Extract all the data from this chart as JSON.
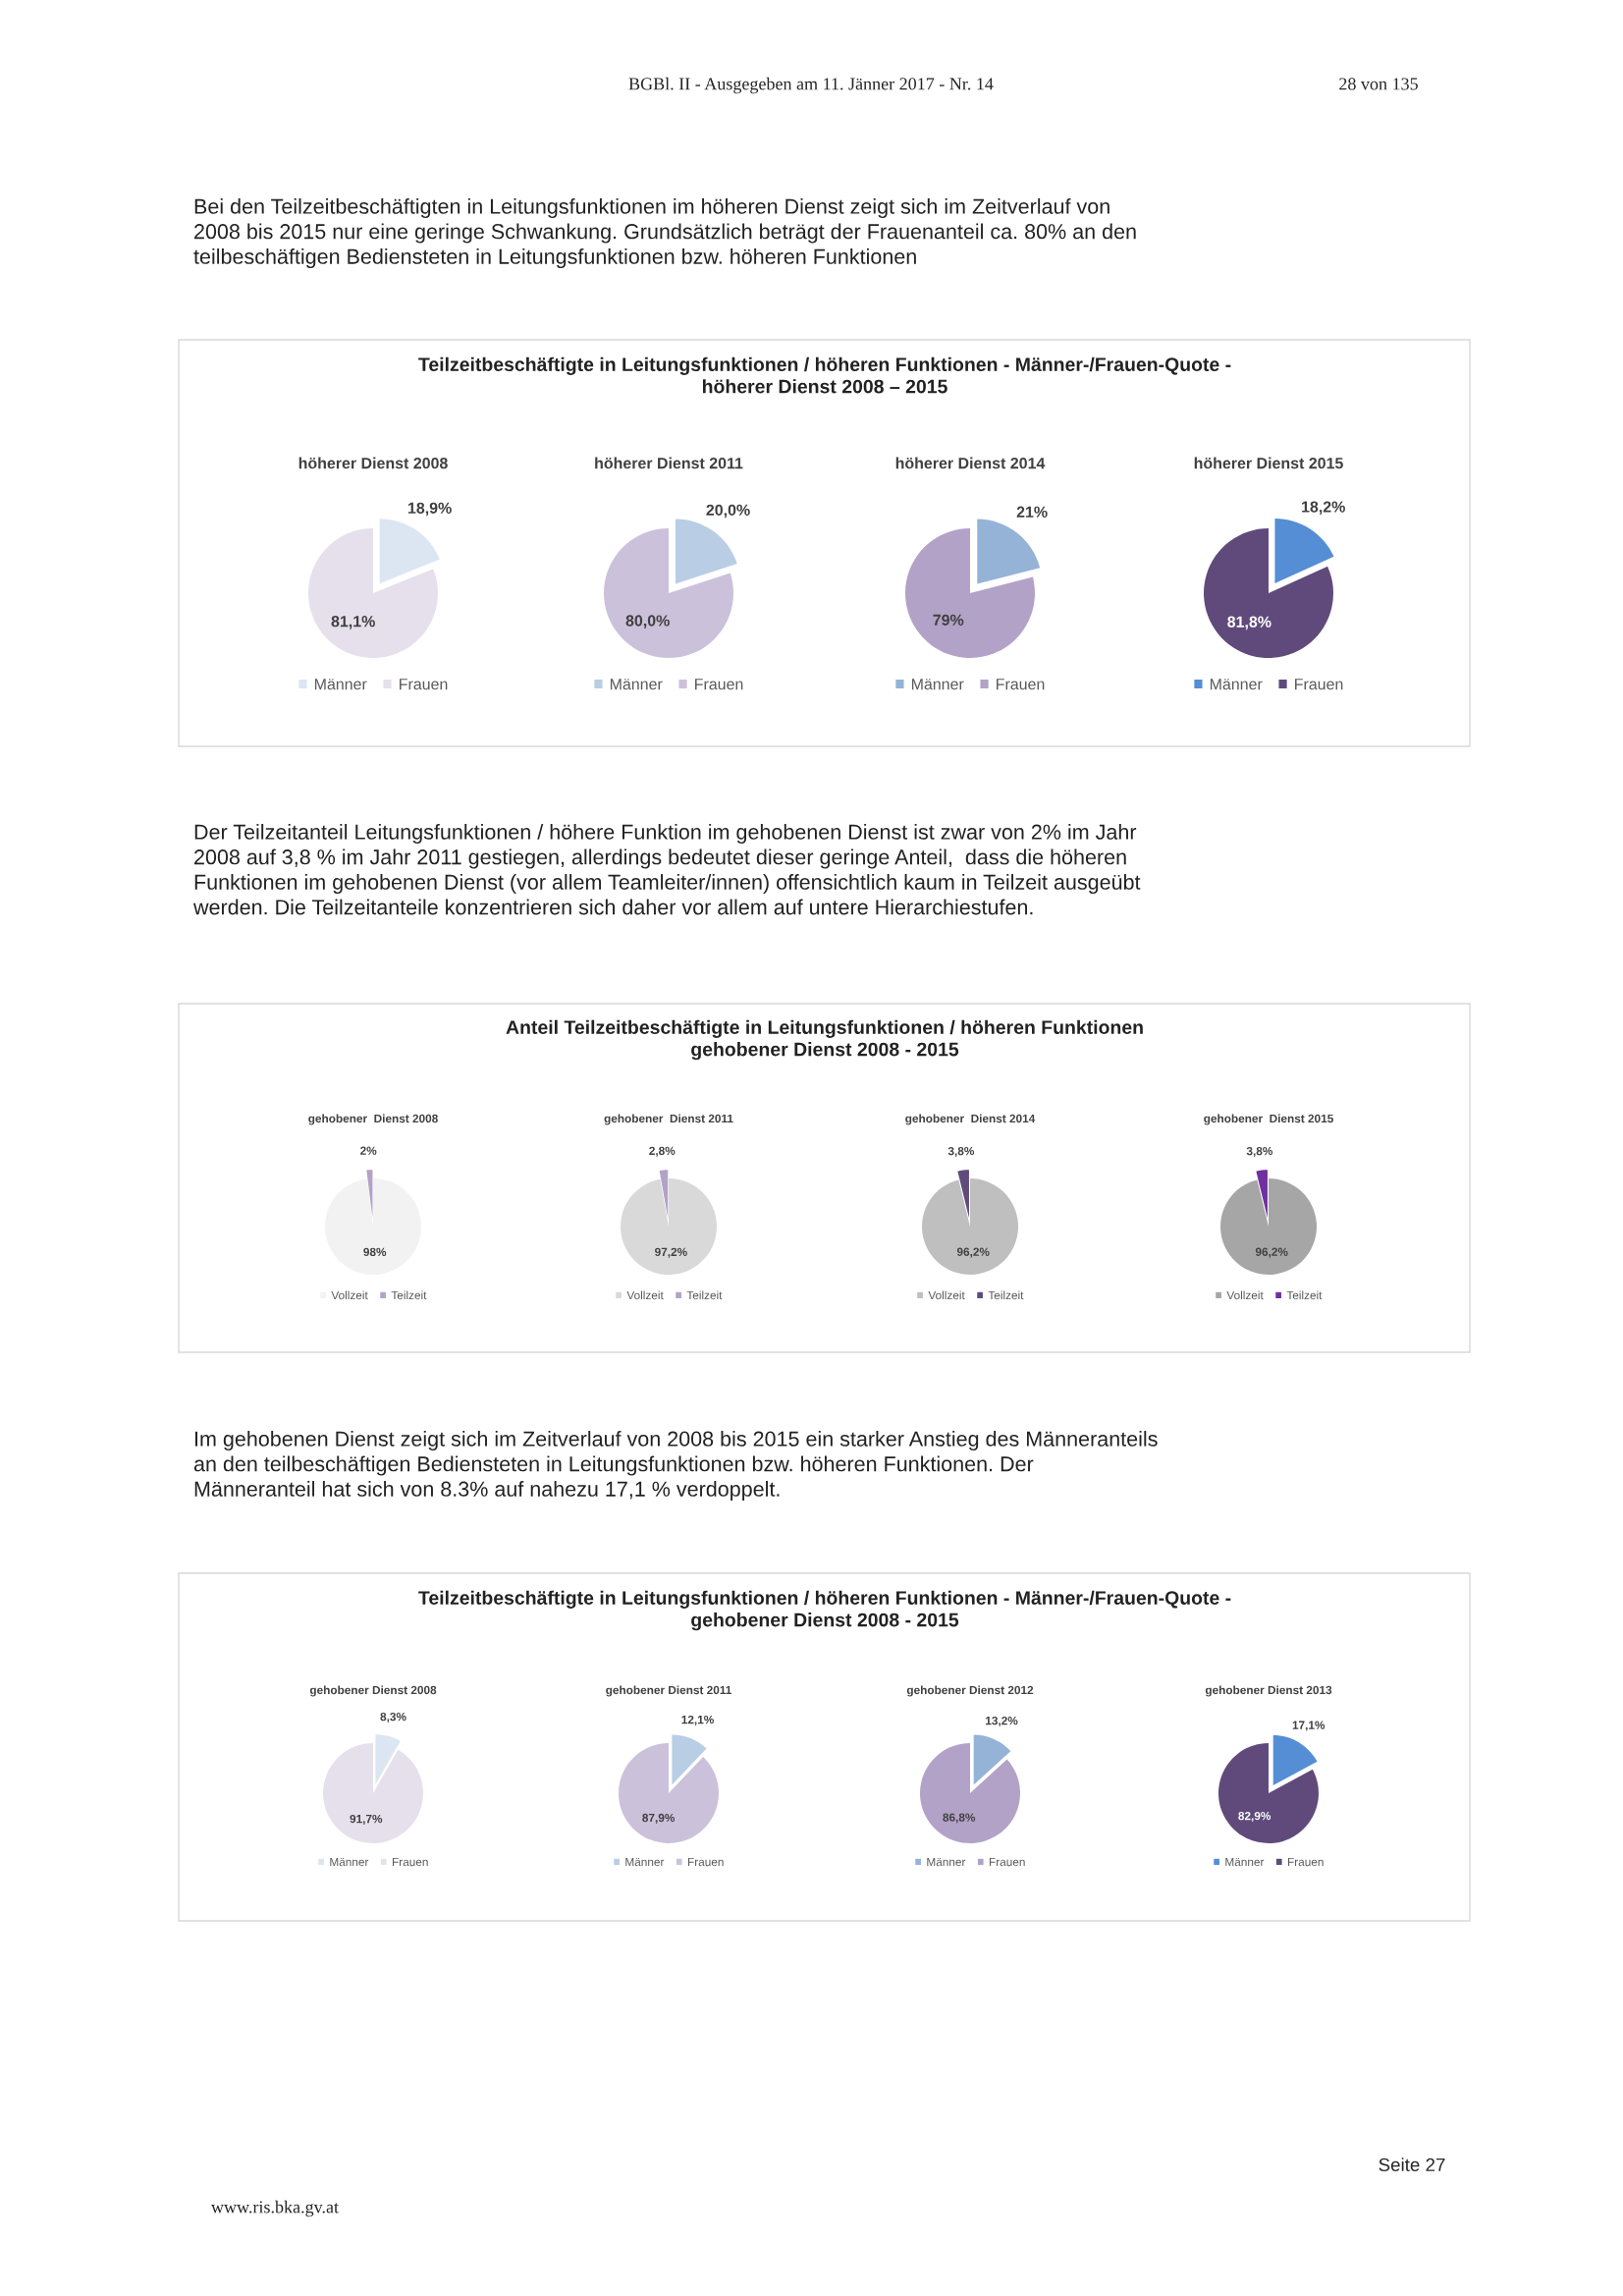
{
  "chart_data": [
    {
      "type": "pie",
      "title": "höherer Dienst 2008",
      "categories": [
        "Männer",
        "Frauen"
      ],
      "values": [
        18.9,
        81.1
      ],
      "value_labels": [
        "18,9%",
        "81,1%"
      ],
      "colors": [
        "#dce6f2",
        "#e6e0ec"
      ],
      "legend": "bottom",
      "annotations": [
        "BGBl. II - Ausgegeben am 11. Jänner 2017 - Nr. 14",
        "28 von 135",
        "Bei den Teilzeitbeschäftigten in Leitungsfunktionen im höheren Dienst zeigt sich im Zeitverlauf von\n2008 bis 2015 nur eine geringe Schwankung. Grundsätzlich beträgt der Frauenanteil ca. 80% an den\nteilbeschäftigen Bediensteten in Leitungsfunktionen bzw. höheren Funktionen",
        "Teilzeitbeschäftigte in Leitungsfunktionen / höheren Funktionen - Männer-/Frauen-Quote -\nhöherer Dienst 2008 – 2015"
      ]
    },
    {
      "type": "pie",
      "title": "höherer Dienst 2011",
      "categories": [
        "Männer",
        "Frauen"
      ],
      "values": [
        20.0,
        80.0
      ],
      "value_labels": [
        "20,0%",
        "80,0%"
      ],
      "colors": [
        "#b9cde5",
        "#ccc1da"
      ],
      "legend": "bottom"
    },
    {
      "type": "pie",
      "title": "höherer Dienst 2014",
      "categories": [
        "Männer",
        "Frauen"
      ],
      "values": [
        21,
        79
      ],
      "value_labels": [
        "21%",
        "79%"
      ],
      "colors": [
        "#95b3d7",
        "#b3a2c7"
      ],
      "legend": "bottom"
    },
    {
      "type": "pie",
      "title": "höherer Dienst 2015",
      "categories": [
        "Männer",
        "Frauen"
      ],
      "values": [
        18.2,
        81.8
      ],
      "value_labels": [
        "18,2%",
        "81,8%"
      ],
      "colors": [
        "#558ed5",
        "#604a7b"
      ],
      "legend": "bottom"
    },
    {
      "type": "pie",
      "title": "gehobener  Dienst 2008",
      "categories": [
        "Vollzeit",
        "Teilzeit"
      ],
      "values": [
        98,
        2
      ],
      "value_labels": [
        "98%",
        "2%"
      ],
      "colors": [
        "#f2f2f2",
        "#b3a2c7"
      ],
      "legend": "bottom",
      "annotations": [
        "Der Teilzeitanteil Leitungsfunktionen / höhere Funktion im gehobenen Dienst ist zwar von 2% im Jahr\n2008 auf 3,8 % im Jahr 2011 gestiegen, allerdings bedeutet dieser geringe Anteil,  dass die höheren\nFunktionen im gehobenen Dienst (vor allem Teamleiter/innen) offensichtlich kaum in Teilzeit ausgeübt\nwerden. Die Teilzeitanteile konzentrieren sich daher vor allem auf untere Hierarchiestufen.",
        "Anteil Teilzeitbeschäftigte in Leitungsfunktionen / höheren Funktionen\ngehobener Dienst 2008 - 2015"
      ]
    },
    {
      "type": "pie",
      "title": "gehobener  Dienst 2011",
      "categories": [
        "Vollzeit",
        "Teilzeit"
      ],
      "values": [
        97.2,
        2.8
      ],
      "value_labels": [
        "97,2%",
        "2,8%"
      ],
      "colors": [
        "#d9d9d9",
        "#b3a2c7"
      ],
      "legend": "bottom"
    },
    {
      "type": "pie",
      "title": "gehobener  Dienst 2014",
      "categories": [
        "Vollzeit",
        "Teilzeit"
      ],
      "values": [
        96.2,
        3.8
      ],
      "value_labels": [
        "96,2%",
        "3,8%"
      ],
      "colors": [
        "#bfbfbf",
        "#604a7b"
      ],
      "legend": "bottom"
    },
    {
      "type": "pie",
      "title": "gehobener  Dienst 2015",
      "categories": [
        "Vollzeit",
        "Teilzeit"
      ],
      "values": [
        96.2,
        3.8
      ],
      "value_labels": [
        "96,2%",
        "3,8%"
      ],
      "colors": [
        "#a6a6a6",
        "#7030a0"
      ],
      "legend": "bottom"
    },
    {
      "type": "pie",
      "title": "gehobener Dienst 2008",
      "categories": [
        "Männer",
        "Frauen"
      ],
      "values": [
        8.3,
        91.7
      ],
      "value_labels": [
        "8,3%",
        "91,7%"
      ],
      "colors": [
        "#dce6f2",
        "#e6e0ec"
      ],
      "legend": "bottom",
      "annotations": [
        "Im gehobenen Dienst zeigt sich im Zeitverlauf von 2008 bis 2015 ein starker Anstieg des Männeranteils\nan den teilbeschäftigen Bediensteten in Leitungsfunktionen bzw. höheren Funktionen. Der\nMänneranteil hat sich von 8.3% auf nahezu 17,1 % verdoppelt.",
        "Teilzeitbeschäftigte in Leitungsfunktionen / höheren Funktionen - Männer-/Frauen-Quote -\ngehobener Dienst 2008 - 2015"
      ]
    },
    {
      "type": "pie",
      "title": "gehobener Dienst 2011",
      "categories": [
        "Männer",
        "Frauen"
      ],
      "values": [
        12.1,
        87.9
      ],
      "value_labels": [
        "12,1%",
        "87,9%"
      ],
      "colors": [
        "#b9cde5",
        "#ccc1da"
      ],
      "legend": "bottom"
    },
    {
      "type": "pie",
      "title": "gehobener Dienst 2012",
      "categories": [
        "Männer",
        "Frauen"
      ],
      "values": [
        13.2,
        86.8
      ],
      "value_labels": [
        "13,2%",
        "86,8%"
      ],
      "colors": [
        "#95b3d7",
        "#b3a2c7"
      ],
      "legend": "bottom"
    },
    {
      "type": "pie",
      "title": "gehobener Dienst 2013",
      "categories": [
        "Männer",
        "Frauen"
      ],
      "values": [
        17.1,
        82.9
      ],
      "value_labels": [
        "17,1%",
        "82,9%"
      ],
      "colors": [
        "#558ed5",
        "#604a7b"
      ],
      "legend": "bottom",
      "annotations": [
        "Seite 27",
        "www.ris.bka.gv.at"
      ]
    }
  ]
}
